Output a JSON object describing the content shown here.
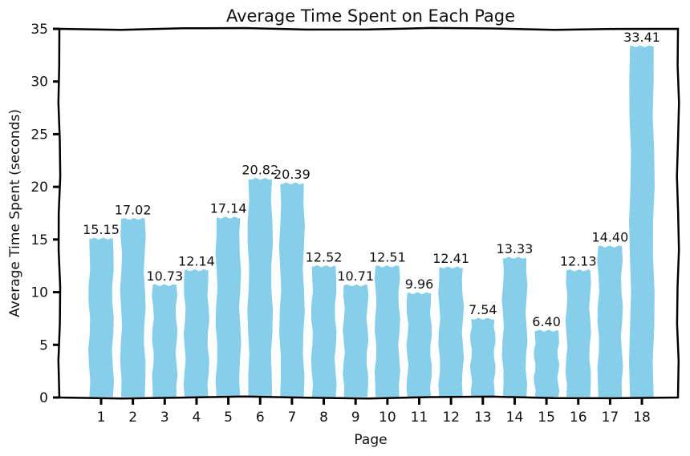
{
  "chart_data": {
    "type": "bar",
    "title": "Average Time Spent on Each Page",
    "xlabel": "Page",
    "ylabel": "Average Time Spent (seconds)",
    "categories": [
      "1",
      "2",
      "3",
      "4",
      "5",
      "6",
      "7",
      "8",
      "9",
      "10",
      "11",
      "12",
      "13",
      "14",
      "15",
      "16",
      "17",
      "18"
    ],
    "values": [
      15.15,
      17.02,
      10.73,
      12.14,
      17.14,
      20.82,
      20.39,
      12.52,
      10.71,
      12.51,
      9.96,
      12.41,
      7.54,
      13.33,
      6.4,
      12.13,
      14.4,
      33.41
    ],
    "value_labels": [
      "15.15",
      "17.02",
      "10.73",
      "12.14",
      "17.14",
      "20.82",
      "20.39",
      "12.52",
      "10.71",
      "12.51",
      "9.96",
      "12.41",
      "7.54",
      "13.33",
      "6.40",
      "12.13",
      "14.40",
      "33.41"
    ],
    "ylim": [
      0,
      35
    ],
    "yticks": [
      0,
      5,
      10,
      15,
      20,
      25,
      30,
      35
    ],
    "grid": false,
    "bar_color": "#87ceeb",
    "style": "hand-drawn"
  }
}
